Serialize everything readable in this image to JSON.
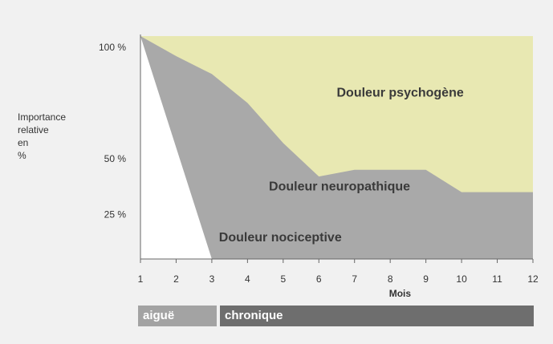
{
  "chart_data": {
    "type": "area",
    "xlabel": "Mois",
    "ylabel_lines": [
      "Importance",
      "relative",
      "en",
      "%"
    ],
    "x": [
      1,
      2,
      3,
      4,
      5,
      6,
      7,
      8,
      9,
      10,
      11,
      12
    ],
    "xlim": [
      1,
      12
    ],
    "ylim": [
      0,
      100
    ],
    "y_ticks": [
      {
        "value": 100,
        "label": "100 %"
      },
      {
        "value": 50,
        "label": "50 %"
      },
      {
        "value": 25,
        "label": "25 %"
      }
    ],
    "grid": false,
    "legend": "none",
    "boundaries": {
      "nociceptive_upper": [
        [
          1,
          100
        ],
        [
          3,
          0
        ]
      ],
      "neuropathic_upper": [
        [
          1,
          100
        ],
        [
          2,
          91
        ],
        [
          3,
          83
        ],
        [
          4,
          70
        ],
        [
          5,
          52
        ],
        [
          6,
          37
        ],
        [
          7,
          40
        ],
        [
          8,
          40
        ],
        [
          9,
          40
        ],
        [
          10,
          30
        ],
        [
          11,
          30
        ],
        [
          12,
          30
        ]
      ]
    },
    "regions": [
      {
        "label": "Douleur psychogène",
        "color": "#e8e8b2",
        "label_at": [
          6.5,
          75
        ]
      },
      {
        "label": "Douleur neuropathique",
        "color": "#a9a9a9",
        "label_at": [
          4.6,
          33
        ]
      },
      {
        "label": "Douleur nociceptive",
        "color": "#ffffff",
        "label_at": [
          3.2,
          10
        ]
      }
    ],
    "phases": [
      {
        "label": "aiguë",
        "from": 1,
        "to": 3
      },
      {
        "label": "chronique",
        "from": 3,
        "to": 12
      }
    ]
  }
}
